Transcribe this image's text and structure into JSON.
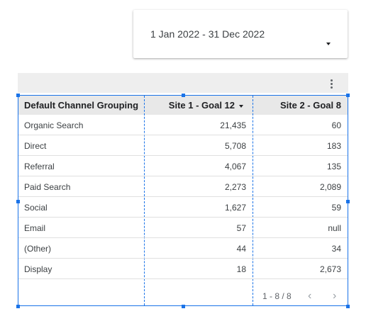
{
  "date_range": {
    "label": "1 Jan 2022 - 31 Dec 2022",
    "caret_icon": "caret-down-icon"
  },
  "toolbar": {
    "more_icon": "more-vert-icon"
  },
  "table": {
    "columns": [
      "Default Channel Grouping",
      "Site 1 - Goal 12",
      "Site 2 - Goal 8"
    ],
    "sort_icon": "caret-down-icon",
    "rows": [
      [
        "Organic Search",
        "21,435",
        "60"
      ],
      [
        "Direct",
        "5,708",
        "183"
      ],
      [
        "Referral",
        "4,067",
        "135"
      ],
      [
        "Paid Search",
        "2,273",
        "2,089"
      ],
      [
        "Social",
        "1,627",
        "59"
      ],
      [
        "Email",
        "57",
        "null"
      ],
      [
        "(Other)",
        "44",
        "34"
      ],
      [
        "Display",
        "18",
        "2,673"
      ]
    ],
    "pagination": {
      "range": "1 - 8 / 8",
      "prev": "‹",
      "next": "›"
    }
  },
  "colors": {
    "selection": "#1a73e8",
    "header_bg": "#e8e8e8",
    "toolbar_bg": "#eeeeee"
  }
}
